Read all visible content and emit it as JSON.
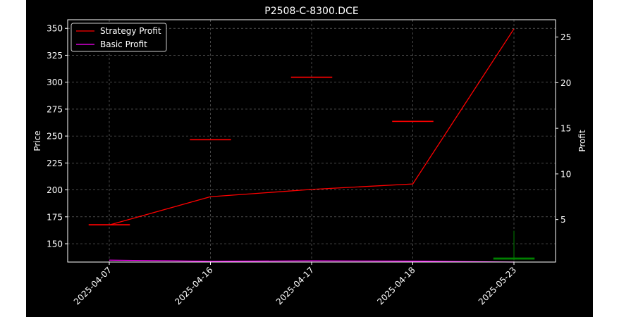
{
  "chart_data": {
    "type": "candlestick+line",
    "title": "P2508-C-8300.DCE",
    "ylabel_left": "Price",
    "ylabel_right": "Profit",
    "x_categories": [
      "2025-04-07",
      "2025-04-16",
      "2025-04-17",
      "2025-04-18",
      "2025-05-23"
    ],
    "ylim_left": [
      133,
      358
    ],
    "yticks_left": [
      150,
      175,
      200,
      225,
      250,
      275,
      300,
      325,
      350
    ],
    "ylim_right": [
      0.34,
      26.9
    ],
    "yticks_right": [
      5,
      10,
      15,
      20,
      25
    ],
    "grid": true,
    "legend_position": "top-left",
    "candles": [
      {
        "x": "2025-04-07",
        "open": 168,
        "high": 168,
        "low": 168,
        "close": 168,
        "color": "#ff0000"
      },
      {
        "x": "2025-04-16",
        "open": 247,
        "high": 247,
        "low": 247,
        "close": 247,
        "color": "#ff0000"
      },
      {
        "x": "2025-04-17",
        "open": 305,
        "high": 305,
        "low": 305,
        "close": 305,
        "color": "#ff0000"
      },
      {
        "x": "2025-04-18",
        "open": 264,
        "high": 264,
        "low": 264,
        "close": 264,
        "color": "#ff0000"
      },
      {
        "x": "2025-05-23",
        "open": 137,
        "high": 162,
        "low": 135,
        "close": 135.5,
        "color": "#008000"
      }
    ],
    "series": [
      {
        "name": "Strategy Profit",
        "color": "#ff0000",
        "values": [
          4.4,
          7.5,
          8.3,
          8.9,
          25.9
        ]
      },
      {
        "name": "Basic Profit",
        "color": "#ff00ff",
        "values": [
          0.55,
          0.42,
          0.47,
          0.44,
          0.34
        ]
      }
    ]
  }
}
